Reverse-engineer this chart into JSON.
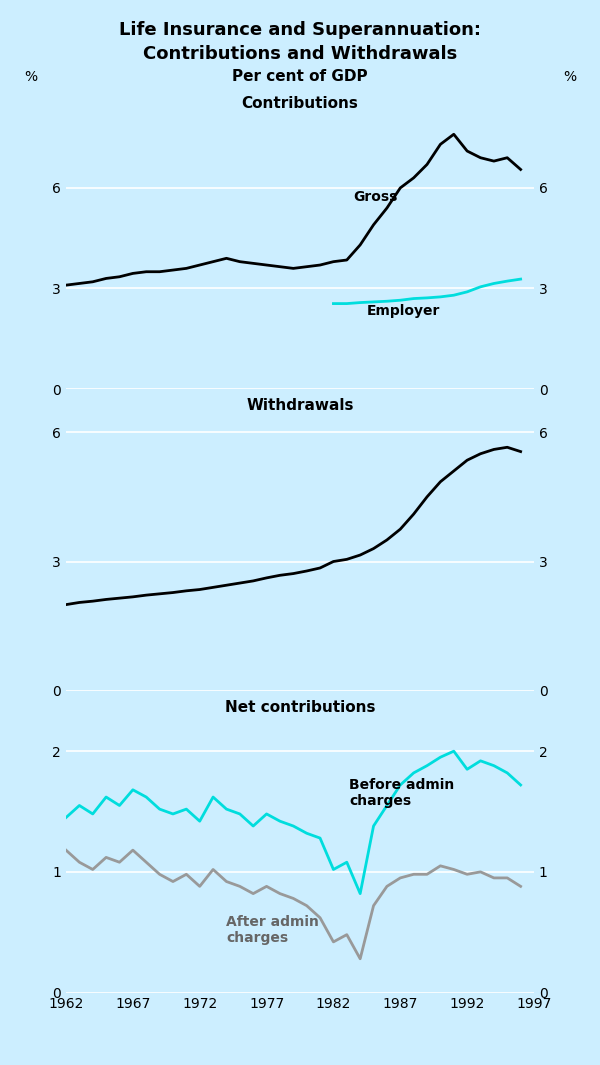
{
  "title_line1": "Life Insurance and Superannuation:",
  "title_line2": "Contributions and Withdrawals",
  "subtitle": "Per cent of GDP",
  "background_color": "#cceeff",
  "panel_labels": [
    "Contributions",
    "Withdrawals",
    "Net contributions"
  ],
  "years": [
    1962,
    1963,
    1964,
    1965,
    1966,
    1967,
    1968,
    1969,
    1970,
    1971,
    1972,
    1973,
    1974,
    1975,
    1976,
    1977,
    1978,
    1979,
    1980,
    1981,
    1982,
    1983,
    1984,
    1985,
    1986,
    1987,
    1988,
    1989,
    1990,
    1991,
    1992,
    1993,
    1994,
    1995,
    1996
  ],
  "gross_contributions": [
    3.1,
    3.15,
    3.2,
    3.3,
    3.35,
    3.45,
    3.5,
    3.5,
    3.55,
    3.6,
    3.7,
    3.8,
    3.9,
    3.8,
    3.75,
    3.7,
    3.65,
    3.6,
    3.65,
    3.7,
    3.8,
    3.85,
    4.3,
    4.9,
    5.4,
    6.0,
    6.3,
    6.7,
    7.3,
    7.6,
    7.1,
    6.9,
    6.8,
    6.9,
    6.55
  ],
  "employer_contributions": [
    null,
    null,
    null,
    null,
    null,
    null,
    null,
    null,
    null,
    null,
    null,
    null,
    null,
    null,
    null,
    null,
    null,
    null,
    null,
    null,
    2.55,
    2.55,
    2.58,
    2.6,
    2.62,
    2.65,
    2.7,
    2.72,
    2.75,
    2.8,
    2.9,
    3.05,
    3.15,
    3.22,
    3.28
  ],
  "withdrawals": [
    2.0,
    2.05,
    2.08,
    2.12,
    2.15,
    2.18,
    2.22,
    2.25,
    2.28,
    2.32,
    2.35,
    2.4,
    2.45,
    2.5,
    2.55,
    2.62,
    2.68,
    2.72,
    2.78,
    2.85,
    3.0,
    3.05,
    3.15,
    3.3,
    3.5,
    3.75,
    4.1,
    4.5,
    4.85,
    5.1,
    5.35,
    5.5,
    5.6,
    5.65,
    5.55
  ],
  "net_before": [
    1.45,
    1.55,
    1.48,
    1.62,
    1.55,
    1.68,
    1.62,
    1.52,
    1.48,
    1.52,
    1.42,
    1.62,
    1.52,
    1.48,
    1.38,
    1.48,
    1.42,
    1.38,
    1.32,
    1.28,
    1.02,
    1.08,
    0.82,
    1.38,
    1.55,
    1.72,
    1.82,
    1.88,
    1.95,
    2.0,
    1.85,
    1.92,
    1.88,
    1.82,
    1.72
  ],
  "net_after": [
    1.18,
    1.08,
    1.02,
    1.12,
    1.08,
    1.18,
    1.08,
    0.98,
    0.92,
    0.98,
    0.88,
    1.02,
    0.92,
    0.88,
    0.82,
    0.88,
    0.82,
    0.78,
    0.72,
    0.62,
    0.42,
    0.48,
    0.28,
    0.72,
    0.88,
    0.95,
    0.98,
    0.98,
    1.05,
    1.02,
    0.98,
    1.0,
    0.95,
    0.95,
    0.88
  ],
  "gross_color": "#000000",
  "employer_color": "#00dddd",
  "withdrawals_color": "#000000",
  "net_before_color": "#00dddd",
  "net_after_color": "#999999",
  "line_width": 2.0,
  "panel1_ylim": [
    0,
    9
  ],
  "panel1_yticks": [
    0,
    3,
    6
  ],
  "panel2_ylim": [
    0,
    7
  ],
  "panel2_yticks": [
    0,
    3,
    6
  ],
  "panel3_ylim": [
    0,
    2.5
  ],
  "panel3_yticks": [
    0,
    1,
    2
  ],
  "xlim": [
    1962,
    1997
  ],
  "xticks": [
    1962,
    1967,
    1972,
    1977,
    1982,
    1987,
    1992,
    1997
  ]
}
